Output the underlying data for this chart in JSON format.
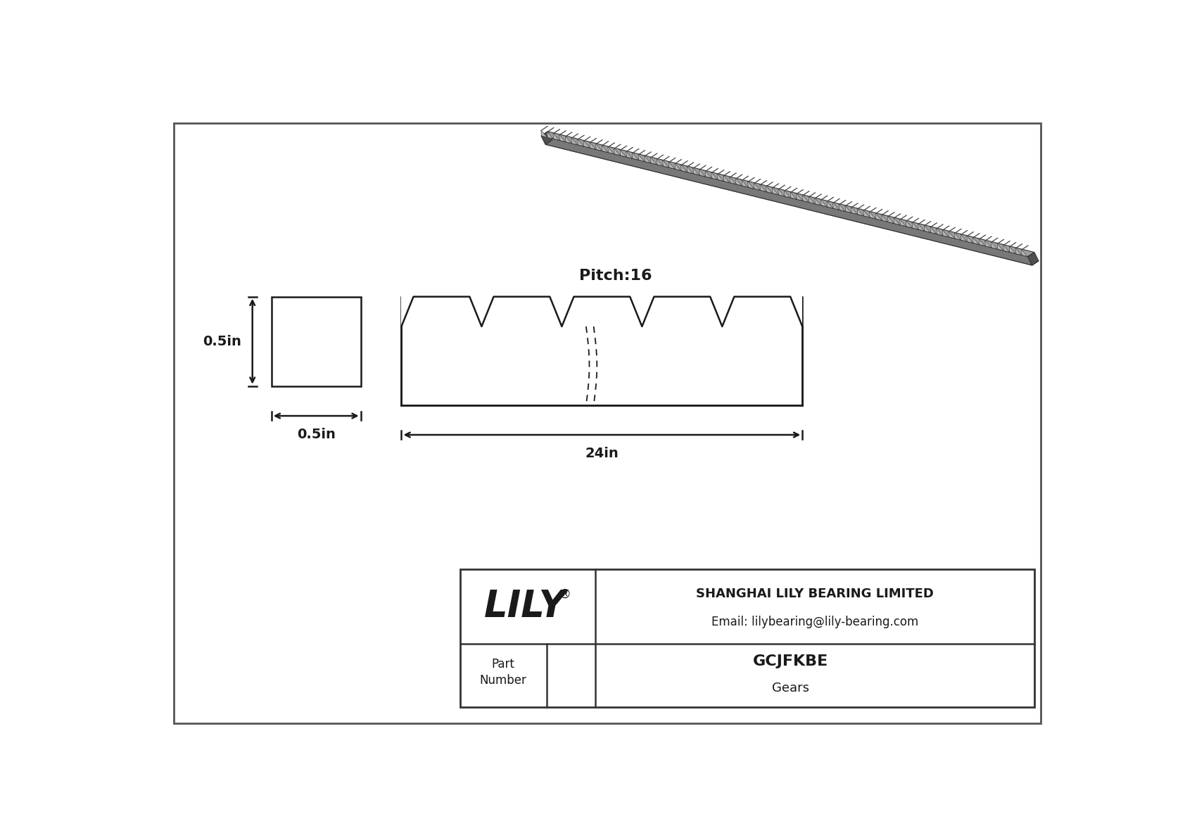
{
  "bg_color": "#ffffff",
  "line_color": "#1a1a1a",
  "title_company": "SHANGHAI LILY BEARING LIMITED",
  "title_email": "Email: lilybearing@lily-bearing.com",
  "part_number": "GCJFKBE",
  "part_type": "Gears",
  "pitch_label": "Pitch:16",
  "dim_width": "0.5in",
  "dim_height": "0.5in",
  "dim_length": "24in",
  "rack_color_top": "#a0a0a0",
  "rack_color_side": "#787878",
  "rack_color_dark": "#505050",
  "rack_color_edge": "#333333"
}
